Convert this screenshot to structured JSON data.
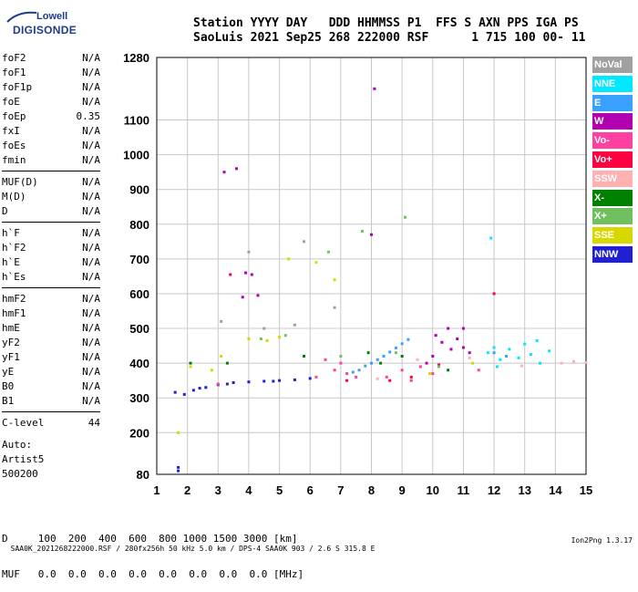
{
  "logo": {
    "line1": "Lowell",
    "line2": "DIGISONDE"
  },
  "header": {
    "line1": "Station YYYY DAY   DDD HHMMSS P1  FFS S AXN PPS IGA PS",
    "line2": "SaoLuis 2021 Sep25 268 222000 RSF      1 715 100 00- 11"
  },
  "params": [
    {
      "name": "foF2",
      "value": "N/A"
    },
    {
      "name": "foF1",
      "value": "N/A"
    },
    {
      "name": "foF1p",
      "value": "N/A"
    },
    {
      "name": "foE",
      "value": "N/A"
    },
    {
      "name": "foEp",
      "value": "0.35"
    },
    {
      "name": "fxI",
      "value": "N/A"
    },
    {
      "name": "foEs",
      "value": "N/A"
    },
    {
      "name": "fmin",
      "value": "N/A"
    },
    {
      "sep": true
    },
    {
      "name": "MUF(D)",
      "value": "N/A"
    },
    {
      "name": "M(D)",
      "value": "N/A"
    },
    {
      "name": "D",
      "value": "N/A"
    },
    {
      "sep": true
    },
    {
      "name": "h`F",
      "value": "N/A"
    },
    {
      "name": "h`F2",
      "value": "N/A"
    },
    {
      "name": "h`E",
      "value": "N/A"
    },
    {
      "name": "h`Es",
      "value": "N/A"
    },
    {
      "sep": true
    },
    {
      "name": "hmF2",
      "value": "N/A"
    },
    {
      "name": "hmF1",
      "value": "N/A"
    },
    {
      "name": "hmE",
      "value": "N/A"
    },
    {
      "name": "yF2",
      "value": "N/A"
    },
    {
      "name": "yF1",
      "value": "N/A"
    },
    {
      "name": "yE",
      "value": "N/A"
    },
    {
      "name": "B0",
      "value": "N/A"
    },
    {
      "name": "B1",
      "value": "N/A"
    },
    {
      "sep": true
    },
    {
      "name": "C-level",
      "value": "44"
    }
  ],
  "auto": {
    "line1": "Auto:",
    "line2": "Artist5",
    "line3": "500200"
  },
  "legend": [
    {
      "label": "NoVal",
      "color": "#a0a0a0"
    },
    {
      "label": "NNE",
      "color": "#00e8ff"
    },
    {
      "label": "E",
      "color": "#3aa0ff"
    },
    {
      "label": "W",
      "color": "#b000b0"
    },
    {
      "label": "Vo-",
      "color": "#ff40a0"
    },
    {
      "label": "Vo+",
      "color": "#ff0040"
    },
    {
      "label": "SSW",
      "color": "#ffb0b0"
    },
    {
      "label": "X-",
      "color": "#008000"
    },
    {
      "label": "X+",
      "color": "#70c060"
    },
    {
      "label": "SSE",
      "color": "#d8d800"
    },
    {
      "label": "NNW",
      "color": "#2020d0"
    }
  ],
  "bottom": {
    "line1": "D     100  200  400  600  800 1000 1500 3000 [km]",
    "line2": "MUF   0.0  0.0  0.0  0.0  0.0  0.0  0.0  0.0 [MHz]"
  },
  "footer": {
    "left": "SAA0K_2021268222000.RSF / 280fx256h 50 kHz 5.0 km / DPS-4 SAA0K 903 / 2.6 S 315.8 E",
    "right": "Ion2Png 1.3.17"
  },
  "chart_data": {
    "type": "scatter",
    "title": "",
    "xlabel": "",
    "ylabel": "",
    "xlim": [
      1,
      15
    ],
    "ylim": [
      80,
      1280
    ],
    "x_ticks": [
      1,
      2,
      3,
      4,
      5,
      6,
      7,
      8,
      9,
      10,
      11,
      12,
      13,
      14,
      15
    ],
    "y_ticks": [
      80,
      200,
      300,
      400,
      500,
      600,
      700,
      800,
      900,
      1000,
      1100,
      1280
    ],
    "grid": true,
    "series": [
      {
        "name": "NNW",
        "color": "#2020d0",
        "points": [
          [
            1.6,
            316
          ],
          [
            1.9,
            310
          ],
          [
            2.2,
            322
          ],
          [
            2.6,
            330
          ],
          [
            3.0,
            338
          ],
          [
            3.5,
            344
          ],
          [
            4.0,
            346
          ],
          [
            4.5,
            348
          ],
          [
            5.0,
            350
          ],
          [
            5.5,
            352
          ],
          [
            6.0,
            356
          ],
          [
            2.4,
            328
          ],
          [
            3.3,
            340
          ],
          [
            4.8,
            348
          ],
          [
            1.7,
            90
          ],
          [
            1.7,
            100
          ]
        ]
      },
      {
        "name": "E",
        "color": "#3aa0ff",
        "points": [
          [
            8.0,
            400
          ],
          [
            8.2,
            410
          ],
          [
            8.4,
            420
          ],
          [
            8.6,
            432
          ],
          [
            8.8,
            444
          ],
          [
            9.0,
            456
          ],
          [
            9.2,
            468
          ],
          [
            7.6,
            380
          ],
          [
            7.8,
            392
          ],
          [
            7.4,
            374
          ],
          [
            12.0,
            430
          ],
          [
            12.4,
            420
          ]
        ]
      },
      {
        "name": "NNE",
        "color": "#00e8ff",
        "points": [
          [
            11.8,
            430
          ],
          [
            12.0,
            445
          ],
          [
            12.2,
            410
          ],
          [
            12.5,
            440
          ],
          [
            12.8,
            415
          ],
          [
            13.0,
            455
          ],
          [
            13.2,
            425
          ],
          [
            13.5,
            400
          ],
          [
            13.8,
            435
          ],
          [
            12.1,
            390
          ],
          [
            13.4,
            465
          ],
          [
            11.9,
            760
          ]
        ]
      },
      {
        "name": "W",
        "color": "#b000b0",
        "points": [
          [
            10.0,
            420
          ],
          [
            10.3,
            460
          ],
          [
            10.5,
            500
          ],
          [
            10.8,
            470
          ],
          [
            11.0,
            445
          ],
          [
            11.2,
            430
          ],
          [
            10.1,
            480
          ],
          [
            10.6,
            440
          ],
          [
            9.8,
            400
          ],
          [
            11.0,
            500
          ],
          [
            3.9,
            660
          ],
          [
            4.1,
            655
          ],
          [
            3.8,
            590
          ],
          [
            4.3,
            595
          ],
          [
            8.0,
            770
          ],
          [
            8.1,
            1190
          ],
          [
            3.2,
            950
          ],
          [
            3.6,
            960
          ]
        ]
      },
      {
        "name": "Vo-",
        "color": "#ff40a0",
        "points": [
          [
            6.2,
            360
          ],
          [
            6.8,
            380
          ],
          [
            7.0,
            400
          ],
          [
            7.2,
            370
          ],
          [
            8.5,
            360
          ],
          [
            9.0,
            380
          ],
          [
            9.6,
            390
          ],
          [
            10.0,
            370
          ],
          [
            11.5,
            380
          ],
          [
            3.0,
            340
          ],
          [
            6.5,
            410
          ],
          [
            7.5,
            360
          ],
          [
            9.3,
            350
          ]
        ]
      },
      {
        "name": "Vo+",
        "color": "#ff0040",
        "points": [
          [
            7.2,
            350
          ],
          [
            8.6,
            350
          ],
          [
            9.3,
            360
          ],
          [
            10.2,
            395
          ],
          [
            12.0,
            600
          ],
          [
            3.4,
            655
          ]
        ]
      },
      {
        "name": "SSW",
        "color": "#ffb0b0",
        "points": [
          [
            8.2,
            355
          ],
          [
            9.5,
            410
          ],
          [
            11.2,
            415
          ],
          [
            14.2,
            400
          ],
          [
            14.6,
            405
          ],
          [
            15.0,
            402
          ],
          [
            12.9,
            392
          ]
        ]
      },
      {
        "name": "X-",
        "color": "#008000",
        "points": [
          [
            7.9,
            430
          ],
          [
            8.3,
            400
          ],
          [
            9.0,
            420
          ],
          [
            10.5,
            380
          ],
          [
            2.1,
            400
          ],
          [
            5.8,
            420
          ],
          [
            3.3,
            400
          ]
        ]
      },
      {
        "name": "X+",
        "color": "#70c060",
        "points": [
          [
            7.0,
            420
          ],
          [
            8.8,
            430
          ],
          [
            10.2,
            390
          ],
          [
            4.4,
            470
          ],
          [
            5.2,
            480
          ],
          [
            6.6,
            720
          ],
          [
            7.7,
            780
          ],
          [
            9.1,
            820
          ]
        ]
      },
      {
        "name": "SSE",
        "color": "#d8d800",
        "points": [
          [
            4.0,
            470
          ],
          [
            4.6,
            465
          ],
          [
            5.0,
            475
          ],
          [
            2.8,
            380
          ],
          [
            3.1,
            420
          ],
          [
            9.9,
            370
          ],
          [
            11.3,
            400
          ],
          [
            6.2,
            690
          ],
          [
            6.8,
            640
          ],
          [
            5.3,
            700
          ],
          [
            2.1,
            390
          ],
          [
            1.7,
            200
          ]
        ]
      },
      {
        "name": "NoVal",
        "color": "#a0a0a0",
        "points": [
          [
            3.1,
            520
          ],
          [
            4.5,
            500
          ],
          [
            5.5,
            510
          ],
          [
            6.8,
            560
          ],
          [
            4.0,
            720
          ],
          [
            5.8,
            750
          ]
        ]
      }
    ]
  }
}
